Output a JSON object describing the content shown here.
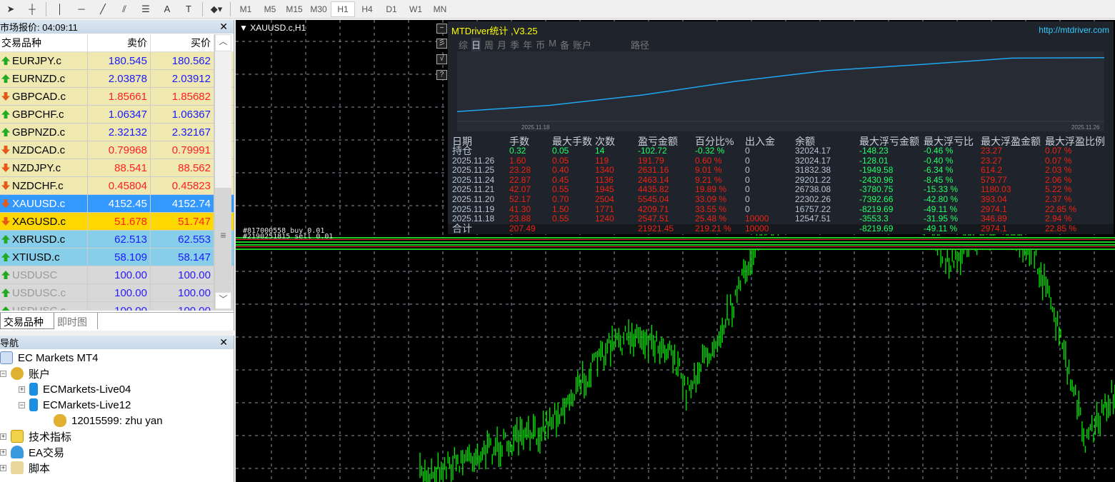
{
  "toolbar": {
    "tools": [
      "cursor-icon",
      "crosshair-icon",
      "vertical-line-icon",
      "horizontal-line-icon",
      "trendline-icon",
      "fibonacci-icon",
      "channel-icon",
      "text-icon",
      "label-icon",
      "shapes-icon"
    ],
    "text_tool": "A",
    "timeframes": [
      "M1",
      "M5",
      "M15",
      "M30",
      "H1",
      "H4",
      "D1",
      "W1",
      "MN"
    ],
    "active_timeframe": "H1"
  },
  "market_watch": {
    "title": "市场报价: 04:09:11",
    "columns": [
      "交易品种",
      "卖价",
      "买价"
    ],
    "rows": [
      {
        "symbol": "EURJPY.c",
        "bid": "180.545",
        "ask": "180.562",
        "dir": "up",
        "bg": "#efe8b0",
        "color": "#1a1aff"
      },
      {
        "symbol": "EURNZD.c",
        "bid": "2.03878",
        "ask": "2.03912",
        "dir": "up",
        "bg": "#efe8b0",
        "color": "#1a1aff"
      },
      {
        "symbol": "GBPCAD.c",
        "bid": "1.85661",
        "ask": "1.85682",
        "dir": "down",
        "bg": "#efe8b0",
        "color": "#ff2020"
      },
      {
        "symbol": "GBPCHF.c",
        "bid": "1.06347",
        "ask": "1.06367",
        "dir": "up",
        "bg": "#efe8b0",
        "color": "#1a1aff"
      },
      {
        "symbol": "GBPNZD.c",
        "bid": "2.32132",
        "ask": "2.32167",
        "dir": "up",
        "bg": "#efe8b0",
        "color": "#1a1aff"
      },
      {
        "symbol": "NZDCAD.c",
        "bid": "0.79968",
        "ask": "0.79991",
        "dir": "down",
        "bg": "#efe8b0",
        "color": "#ff2020"
      },
      {
        "symbol": "NZDJPY.c",
        "bid": "88.541",
        "ask": "88.562",
        "dir": "down",
        "bg": "#efe8b0",
        "color": "#ff2020"
      },
      {
        "symbol": "NZDCHF.c",
        "bid": "0.45804",
        "ask": "0.45823",
        "dir": "down",
        "bg": "#efe8b0",
        "color": "#ff2020"
      },
      {
        "symbol": "XAUUSD.c",
        "bid": "4152.45",
        "ask": "4152.74",
        "dir": "down",
        "bg": "#3399ff",
        "color": "#ffffff",
        "symcolor": "#ffffff"
      },
      {
        "symbol": "XAGUSD.c",
        "bid": "51.678",
        "ask": "51.747",
        "dir": "down",
        "bg": "#ffd700",
        "color": "#ff2020"
      },
      {
        "symbol": "XBRUSD.c",
        "bid": "62.513",
        "ask": "62.553",
        "dir": "up",
        "bg": "#87ceeb",
        "color": "#1a1aff"
      },
      {
        "symbol": "XTIUSD.c",
        "bid": "58.109",
        "ask": "58.147",
        "dir": "up",
        "bg": "#87ceeb",
        "color": "#1a1aff"
      },
      {
        "symbol": "USDUSC",
        "bid": "100.00",
        "ask": "100.00",
        "dir": "up",
        "bg": "#d8d8d8",
        "color": "#2a1aff",
        "symcolor": "#999999"
      },
      {
        "symbol": "USDUSC.c",
        "bid": "100.00",
        "ask": "100.00",
        "dir": "up",
        "bg": "#d8d8d8",
        "color": "#2a1aff",
        "symcolor": "#999999"
      },
      {
        "symbol": "USDUSC.c",
        "bid": "100.00",
        "ask": "100.00",
        "dir": "up",
        "bg": "#d8d8d8",
        "color": "#2a1aff",
        "symcolor": "#999999"
      }
    ],
    "tabs": [
      "交易品种",
      "即时图"
    ]
  },
  "navigator": {
    "title": "导航",
    "root": "EC Markets MT4",
    "accounts": "账户",
    "server1": "ECMarkets-Live04",
    "server2": "ECMarkets-Live12",
    "account": "12015599: zhu yan",
    "indicators": "技术指标",
    "experts": "EA交易",
    "scripts": "脚本"
  },
  "chart": {
    "title": "XAUUSD.c,H1",
    "side_buttons": [
      "−",
      "彡",
      "√",
      "?"
    ]
  },
  "stats": {
    "title": "MTDriver统计 ,V3.25",
    "url": "http://mtdriver.com",
    "tabs": [
      "综",
      "日",
      "周",
      "月",
      "季",
      "年",
      "币",
      "M",
      "备",
      "账户",
      "路径"
    ],
    "active_tab": "日",
    "mini_chart": {
      "x_start": "2025.11.18",
      "x_end": "2025.11.26"
    },
    "headers": [
      "日期",
      "手数",
      "最大手数",
      "次数",
      "盈亏金额",
      "百分比%",
      "出入金",
      "余额",
      "最大浮亏金额",
      "最大浮亏比",
      "最大浮盈金额",
      "最大浮盈比例"
    ],
    "rows": [
      [
        "持仓",
        "0.32",
        "0.05",
        "14",
        "-102.72",
        "-0.32 %",
        "0",
        "32024.17",
        "-148.23",
        "-0.46 %",
        "23.27",
        "0.07 %"
      ],
      [
        "2025.11.26",
        "1.60",
        "0.05",
        "119",
        "191.79",
        "0.60 %",
        "0",
        "32024.17",
        "-128.01",
        "-0.40 %",
        "23.27",
        "0.07 %"
      ],
      [
        "2025.11.25",
        "23.28",
        "0.40",
        "1340",
        "2631.16",
        "9.01 %",
        "0",
        "31832.38",
        "-1949.58",
        "-6.34 %",
        "614.2",
        "2.03 %"
      ],
      [
        "2025.11.24",
        "22.87",
        "0.45",
        "1136",
        "2463.14",
        "9.21 %",
        "0",
        "29201.22",
        "-2430.96",
        "-8.45 %",
        "579.77",
        "2.06 %"
      ],
      [
        "2025.11.21",
        "42.07",
        "0.55",
        "1945",
        "4435.82",
        "19.89 %",
        "0",
        "26738.08",
        "-3780.75",
        "-15.33 %",
        "1180.03",
        "5.22 %"
      ],
      [
        "2025.11.20",
        "52.17",
        "0.70",
        "2504",
        "5545.04",
        "33.09 %",
        "0",
        "22302.26",
        "-7392.66",
        "-42.80 %",
        "393.04",
        "2.37 %"
      ],
      [
        "2025.11.19",
        "41.30",
        "1.50",
        "1771",
        "4209.71",
        "33.55 %",
        "0",
        "16757.22",
        "-8219.69",
        "-49.11 %",
        "2974.1",
        "22.85 %"
      ],
      [
        "2025.11.18",
        "23.88",
        "0.55",
        "1240",
        "2547.51",
        "25.48 %",
        "10000",
        "12547.51",
        "-3553.3",
        "-31.95 %",
        "346.89",
        "2.94 %"
      ]
    ],
    "total": [
      "合计",
      "207.49",
      "",
      "",
      "21921.45",
      "219.21 %",
      "10000",
      "",
      "-8219.69",
      "-49.11 %",
      "2974.1",
      "22.85 %"
    ],
    "colors": {
      "positive": "#ee2211",
      "negative": "#22ff66",
      "neutral": "#b8c4d6",
      "title": "#ffff00",
      "url": "#33ccff",
      "curve": "#1fa8f0"
    }
  }
}
